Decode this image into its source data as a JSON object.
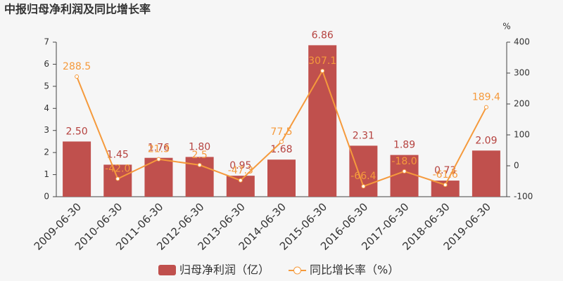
{
  "chart_data": {
    "type": "bar",
    "title": "中报归母净利润及同比增长率",
    "y2label": "%",
    "categories": [
      "2009-06-30",
      "2010-06-30",
      "2011-06-30",
      "2012-06-30",
      "2013-06-30",
      "2014-06-30",
      "2015-06-30",
      "2016-06-30",
      "2017-06-30",
      "2018-06-30",
      "2019-06-30"
    ],
    "series": [
      {
        "name": "归母净利润（亿）",
        "type": "bar",
        "color": "#c0504d",
        "label_color": "#b5423f",
        "values": [
          2.5,
          1.45,
          1.76,
          1.8,
          0.95,
          1.68,
          6.86,
          2.31,
          1.89,
          0.73,
          2.09
        ],
        "value_labels": [
          "2.50",
          "1.45",
          "1.76",
          "1.80",
          "0.95",
          "1.68",
          "6.86",
          "2.31",
          "1.89",
          "0.73",
          "2.09"
        ]
      },
      {
        "name": "同比增长率（%）",
        "type": "line",
        "axis": "y2",
        "color": "#f59a3c",
        "label_color": "#f59a3c",
        "values": [
          288.5,
          -42,
          21.3,
          2.5,
          -47.3,
          77.5,
          307.1,
          -66.4,
          -18,
          -61.6,
          189.4
        ],
        "value_labels": [
          "288.5",
          "-42.0",
          "21.3",
          "2.5",
          "-47.3",
          "77.5",
          "307.1",
          "-66.4",
          "-18.0",
          "-61.6",
          "189.4"
        ]
      }
    ],
    "ylim": [
      0,
      7
    ],
    "yticks": [
      0,
      1,
      2,
      3,
      4,
      5,
      6,
      7
    ],
    "y2lim": [
      -100,
      400
    ],
    "y2ticks": [
      -100,
      0,
      100,
      200,
      300,
      400
    ]
  }
}
